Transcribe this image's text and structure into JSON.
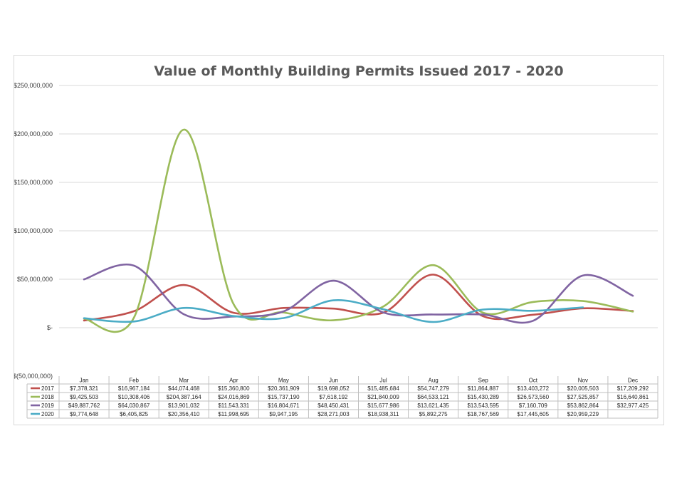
{
  "chart_data": {
    "type": "line",
    "title": "Value of Monthly Building Permits Issued 2017 - 2020",
    "categories": [
      "Jan",
      "Feb",
      "Mar",
      "Apr",
      "May",
      "Jun",
      "Jul",
      "Aug",
      "Sep",
      "Oct",
      "Nov",
      "Dec"
    ],
    "y_ticks": [
      "$250,000,000",
      "$200,000,000",
      "$150,000,000",
      "$100,000,000",
      "$50,000,000",
      "$-",
      "$(50,000,000)"
    ],
    "ylim": [
      -50000000,
      250000000
    ],
    "grid": true,
    "legend": "data-table",
    "series": [
      {
        "name": "2017",
        "color": "#c0504d",
        "values": [
          7378321,
          16967184,
          44074468,
          15360800,
          20361909,
          19698052,
          15485684,
          54747279,
          11864887,
          13403272,
          20005503,
          17209292
        ],
        "labels": [
          "$7,378,321",
          "$16,967,184",
          "$44,074,468",
          "$15,360,800",
          "$20,361,909",
          "$19,698,052",
          "$15,485,684",
          "$54,747,279",
          "$11,864,887",
          "$13,403,272",
          "$20,005,503",
          "$17,209,292"
        ]
      },
      {
        "name": "2018",
        "color": "#9bbb59",
        "values": [
          9425503,
          10308406,
          204387164,
          24016869,
          15737190,
          7618192,
          21840009,
          64533121,
          15430289,
          26573560,
          27525857,
          16640861
        ],
        "labels": [
          "$9,425,503",
          "$10,308,406",
          "$204,387,164",
          "$24,016,869",
          "$15,737,190",
          "$7,618,192",
          "$21,840,009",
          "$64,533,121",
          "$15,430,289",
          "$26,573,560",
          "$27,525,857",
          "$16,640,861"
        ]
      },
      {
        "name": "2019",
        "color": "#8064a2",
        "values": [
          49887762,
          64030867,
          13901032,
          11543331,
          16804671,
          48450431,
          15677986,
          13621435,
          13543595,
          7160709,
          53862864,
          32977425
        ],
        "labels": [
          "$49,887,762",
          "$64,030,867",
          "$13,901,032",
          "$11,543,331",
          "$16,804,671",
          "$48,450,431",
          "$15,677,986",
          "$13,621,435",
          "$13,543,595",
          "$7,160,709",
          "$53,862,864",
          "$32,977,425"
        ]
      },
      {
        "name": "2020",
        "color": "#4bacc6",
        "values": [
          9774648,
          6405825,
          20356410,
          11998695,
          9947195,
          28271003,
          18938311,
          5892275,
          18767569,
          17445605,
          20959229,
          null
        ],
        "labels": [
          "$9,774,648",
          "$6,405,825",
          "$20,356,410",
          "$11,998,695",
          "$9,947,195",
          "$28,271,003",
          "$18,938,311",
          "$5,892,275",
          "$18,767,569",
          "$17,445,605",
          "$20,959,229",
          ""
        ]
      }
    ]
  }
}
